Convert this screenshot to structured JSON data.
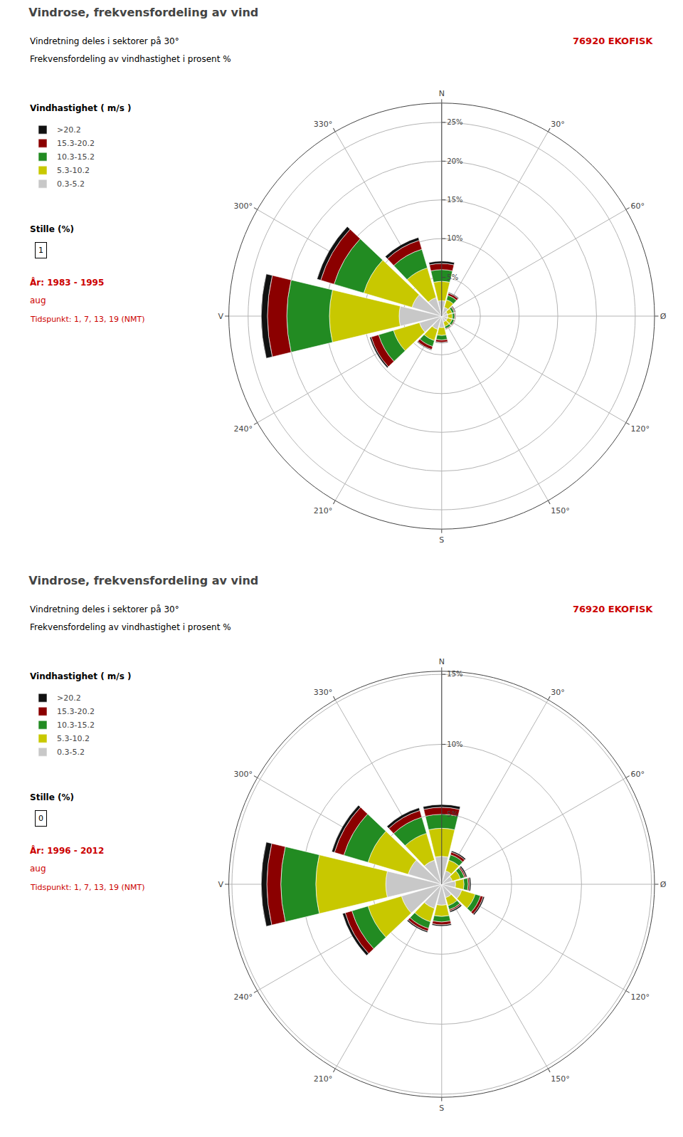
{
  "chart_data": [
    {
      "type": "barpolar",
      "title": "Vindrose, frekvensfordeling av vind",
      "subtitle": "Vindretning deles i sektorer på 30°",
      "annotations": [
        "Frekvensfordeling av vindhastighet i prosent %",
        "76920 EKOFISK",
        "Vindhastighet ( m/s )",
        "Stille (%)",
        "1",
        "År: 1983 - 1995",
        "aug",
        "Tidspunkt: 1, 7, 13, 19 (NMT)"
      ],
      "categories": [
        "N",
        "30°",
        "60°",
        "Ø",
        "120°",
        "150°",
        "S",
        "210°",
        "240°",
        "V",
        "300°",
        "330°"
      ],
      "series": [
        {
          "name": "0.3-5.2",
          "color": "#c8c8c8",
          "values": [
            2.0,
            1.2,
            0.8,
            0.8,
            0.8,
            0.8,
            1.5,
            1.8,
            3.0,
            5.5,
            4.0,
            2.5
          ]
        },
        {
          "name": "5.3-10.2",
          "color": "#c8c800",
          "values": [
            2.5,
            1.0,
            0.6,
            0.6,
            0.6,
            0.6,
            1.0,
            1.5,
            3.5,
            9.0,
            6.5,
            4.0
          ]
        },
        {
          "name": "10.3-15.2",
          "color": "#228b22",
          "values": [
            1.5,
            0.6,
            0.3,
            0.3,
            0.3,
            0.3,
            0.6,
            0.8,
            2.0,
            5.5,
            4.0,
            2.5
          ]
        },
        {
          "name": "15.3-20.2",
          "color": "#8b0000",
          "values": [
            0.8,
            0.3,
            0.1,
            0.1,
            0.1,
            0.1,
            0.3,
            0.4,
            1.0,
            2.5,
            1.8,
            1.2
          ]
        },
        {
          "name": ">20.2",
          "color": "#111111",
          "values": [
            0.3,
            0.1,
            0.1,
            0.05,
            0.05,
            0.05,
            0.1,
            0.1,
            0.2,
            0.8,
            0.5,
            0.4
          ]
        }
      ],
      "ylim": [
        0,
        27.494
      ],
      "yticks": [
        {
          "value": 5,
          "label": "5%"
        },
        {
          "value": 10,
          "label": "10%"
        },
        {
          "value": 15,
          "label": "15%"
        },
        {
          "value": 20,
          "label": "20%"
        },
        {
          "value": 25,
          "label": "25%"
        }
      ],
      "stacked": true,
      "grid": true,
      "legend": "upper left"
    },
    {
      "type": "barpolar",
      "title": "Vindrose, frekvensfordeling av vind",
      "subtitle": "Vindretning deles i sektorer på 30°",
      "annotations": [
        "Frekvensfordeling av vindhastighet i prosent %",
        "76920 EKOFISK",
        "Vindhastighet ( m/s )",
        "Stille (%)",
        "0",
        "År: 1996 - 2012",
        "aug",
        "Tidspunkt: 1, 7, 13, 19 (NMT)"
      ],
      "categories": [
        "N",
        "30°",
        "60°",
        "Ø",
        "120°",
        "150°",
        "S",
        "210°",
        "240°",
        "V",
        "300°",
        "330°"
      ],
      "series": [
        {
          "name": "0.3-5.2",
          "color": "#c8c8c8",
          "values": [
            2.0,
            1.0,
            0.8,
            1.0,
            1.5,
            1.0,
            1.5,
            1.8,
            3.0,
            4.0,
            2.5,
            1.8
          ]
        },
        {
          "name": "5.3-10.2",
          "color": "#c8c800",
          "values": [
            2.0,
            0.8,
            0.6,
            0.6,
            1.0,
            0.6,
            0.8,
            1.0,
            2.5,
            5.0,
            3.0,
            2.0
          ]
        },
        {
          "name": "10.3-15.2",
          "color": "#228b22",
          "values": [
            1.0,
            0.4,
            0.3,
            0.3,
            0.4,
            0.3,
            0.4,
            0.5,
            1.2,
            2.5,
            1.8,
            1.2
          ]
        },
        {
          "name": "15.3-20.2",
          "color": "#8b0000",
          "values": [
            0.5,
            0.2,
            0.1,
            0.1,
            0.2,
            0.1,
            0.2,
            0.2,
            0.5,
            1.0,
            0.7,
            0.5
          ]
        },
        {
          "name": ">20.2",
          "color": "#111111",
          "values": [
            0.2,
            0.1,
            0.1,
            0.1,
            0.1,
            0.1,
            0.1,
            0.1,
            0.2,
            0.4,
            0.2,
            0.2
          ]
        }
      ],
      "ylim": [
        0,
        15.222
      ],
      "yticks": [
        {
          "value": 5,
          "label": "5%"
        },
        {
          "value": 10,
          "label": "10%"
        },
        {
          "value": 15,
          "label": "15%"
        }
      ],
      "stacked": true,
      "grid": true,
      "legend": "upper left"
    }
  ]
}
